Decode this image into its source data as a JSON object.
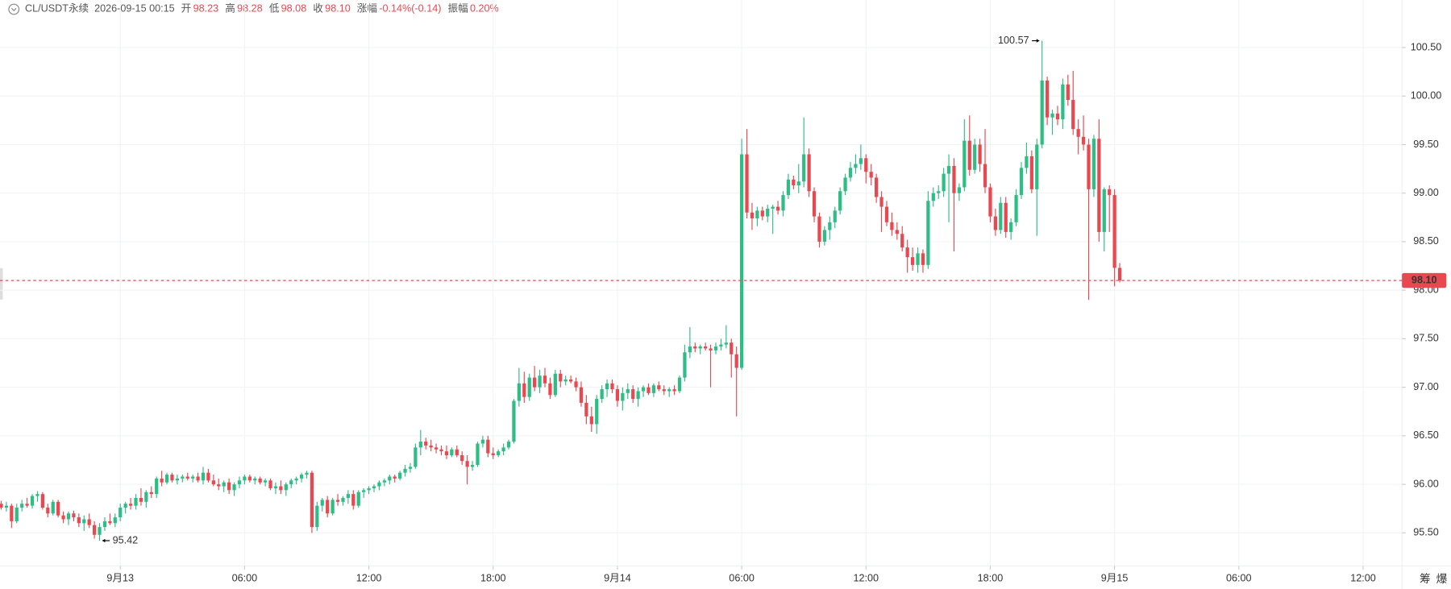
{
  "header": {
    "symbol": "CL/USDT永续",
    "time": "2026-09-15 00:15",
    "items": [
      {
        "label": "开",
        "value": "98.23"
      },
      {
        "label": "高",
        "value": "98.28"
      },
      {
        "label": "低",
        "value": "98.08"
      },
      {
        "label": "收",
        "value": "98.10"
      },
      {
        "label": "涨幅",
        "value": "-0.14%(-0.14)"
      },
      {
        "label": "振幅",
        "value": "0.20%"
      }
    ]
  },
  "toolbar": [
    "筹",
    "爆"
  ],
  "chart_data": {
    "type": "candlestick",
    "up_color": "#2ebd85",
    "down_color": "#e84850",
    "grid": true,
    "ylim": [
      95.16,
      100.78
    ],
    "yticks": [
      {
        "value": 95.5,
        "label": "95.50"
      },
      {
        "value": 96,
        "label": "96.00"
      },
      {
        "value": 96.5,
        "label": "96.50"
      },
      {
        "value": 97,
        "label": "97.00"
      },
      {
        "value": 97.5,
        "label": "97.50"
      },
      {
        "value": 98,
        "label": "98.00"
      },
      {
        "value": 98.5,
        "label": "98.50"
      },
      {
        "value": 99,
        "label": "99.00"
      },
      {
        "value": 99.5,
        "label": "99.50"
      },
      {
        "value": 100,
        "label": "100.00"
      },
      {
        "value": 100.5,
        "label": "100.50"
      }
    ],
    "xlim": [
      -0.23,
      270.5
    ],
    "xticks": [
      {
        "value": 23,
        "label": "9月13"
      },
      {
        "value": 47,
        "label": "06:00"
      },
      {
        "value": 71,
        "label": "12:00"
      },
      {
        "value": 95,
        "label": "18:00"
      },
      {
        "value": 119,
        "label": "9月14"
      },
      {
        "value": 143,
        "label": "06:00"
      },
      {
        "value": 167,
        "label": "12:00"
      },
      {
        "value": 191,
        "label": "18:00"
      },
      {
        "value": 215,
        "label": "9月15"
      },
      {
        "value": 239,
        "label": "06:00"
      },
      {
        "value": 263,
        "label": "12:00"
      }
    ],
    "last_price": {
      "value": 98.1,
      "label": "98.10"
    },
    "ohlc": [
      [
        95.8,
        95.83,
        95.74,
        95.76
      ],
      [
        95.76,
        95.82,
        95.72,
        95.78
      ],
      [
        95.78,
        95.8,
        95.55,
        95.62
      ],
      [
        95.62,
        95.8,
        95.6,
        95.76
      ],
      [
        95.76,
        95.84,
        95.72,
        95.8
      ],
      [
        95.8,
        95.86,
        95.76,
        95.78
      ],
      [
        95.78,
        95.9,
        95.75,
        95.88
      ],
      [
        95.88,
        95.93,
        95.82,
        95.9
      ],
      [
        95.9,
        95.92,
        95.74,
        95.76
      ],
      [
        95.76,
        95.8,
        95.66,
        95.7
      ],
      [
        95.7,
        95.84,
        95.68,
        95.82
      ],
      [
        95.82,
        95.84,
        95.66,
        95.68
      ],
      [
        95.68,
        95.72,
        95.6,
        95.64
      ],
      [
        95.64,
        95.72,
        95.58,
        95.7
      ],
      [
        95.7,
        95.73,
        95.62,
        95.66
      ],
      [
        95.66,
        95.7,
        95.56,
        95.6
      ],
      [
        95.6,
        95.68,
        95.52,
        95.64
      ],
      [
        95.64,
        95.7,
        95.55,
        95.58
      ],
      [
        95.58,
        95.62,
        95.44,
        95.48
      ],
      [
        95.48,
        95.6,
        95.42,
        95.56
      ],
      [
        95.56,
        95.66,
        95.52,
        95.62
      ],
      [
        95.62,
        95.7,
        95.58,
        95.6
      ],
      [
        95.6,
        95.7,
        95.56,
        95.66
      ],
      [
        95.66,
        95.8,
        95.62,
        95.76
      ],
      [
        95.76,
        95.82,
        95.7,
        95.8
      ],
      [
        95.8,
        95.86,
        95.74,
        95.78
      ],
      [
        95.78,
        95.9,
        95.74,
        95.86
      ],
      [
        95.86,
        95.96,
        95.78,
        95.82
      ],
      [
        95.82,
        95.94,
        95.76,
        95.92
      ],
      [
        95.92,
        95.98,
        95.86,
        95.9
      ],
      [
        95.9,
        96.08,
        95.86,
        96.06
      ],
      [
        96.06,
        96.14,
        95.98,
        96.02
      ],
      [
        96.02,
        96.12,
        96.0,
        96.1
      ],
      [
        96.1,
        96.12,
        96.02,
        96.04
      ],
      [
        96.04,
        96.1,
        96.0,
        96.06
      ],
      [
        96.06,
        96.1,
        96.02,
        96.08
      ],
      [
        96.08,
        96.12,
        96.04,
        96.06
      ],
      [
        96.06,
        96.1,
        96.02,
        96.08
      ],
      [
        96.08,
        96.12,
        96.02,
        96.04
      ],
      [
        96.04,
        96.18,
        96.0,
        96.12
      ],
      [
        96.12,
        96.16,
        96.02,
        96.04
      ],
      [
        96.04,
        96.1,
        95.98,
        96.0
      ],
      [
        96.0,
        96.06,
        95.94,
        95.98
      ],
      [
        95.98,
        96.04,
        95.92,
        96.02
      ],
      [
        96.02,
        96.06,
        95.9,
        95.94
      ],
      [
        95.94,
        96.02,
        95.88,
        96.0
      ],
      [
        96.0,
        96.08,
        95.96,
        96.04
      ],
      [
        96.04,
        96.1,
        96.0,
        96.08
      ],
      [
        96.08,
        96.1,
        96.02,
        96.04
      ],
      [
        96.04,
        96.08,
        96.0,
        96.06
      ],
      [
        96.06,
        96.08,
        96.0,
        96.02
      ],
      [
        96.02,
        96.06,
        95.98,
        96.04
      ],
      [
        96.04,
        96.06,
        95.94,
        95.96
      ],
      [
        95.96,
        96.02,
        95.9,
        95.98
      ],
      [
        95.98,
        96.04,
        95.9,
        95.94
      ],
      [
        95.94,
        96.02,
        95.88,
        96.0
      ],
      [
        96.0,
        96.06,
        95.96,
        96.04
      ],
      [
        96.04,
        96.08,
        96.0,
        96.06
      ],
      [
        96.06,
        96.12,
        96.02,
        96.1
      ],
      [
        96.1,
        96.14,
        96.06,
        96.12
      ],
      [
        96.12,
        96.14,
        95.5,
        95.56
      ],
      [
        95.56,
        95.82,
        95.52,
        95.78
      ],
      [
        95.78,
        95.86,
        95.72,
        95.84
      ],
      [
        95.84,
        95.88,
        95.66,
        95.7
      ],
      [
        95.7,
        95.86,
        95.68,
        95.84
      ],
      [
        95.84,
        95.9,
        95.78,
        95.82
      ],
      [
        95.82,
        95.88,
        95.78,
        95.86
      ],
      [
        95.86,
        95.94,
        95.8,
        95.9
      ],
      [
        95.9,
        95.94,
        95.74,
        95.78
      ],
      [
        95.78,
        95.94,
        95.76,
        95.92
      ],
      [
        95.92,
        95.96,
        95.86,
        95.94
      ],
      [
        95.94,
        95.98,
        95.9,
        95.96
      ],
      [
        95.96,
        96.0,
        95.92,
        95.98
      ],
      [
        95.98,
        96.04,
        95.94,
        96.02
      ],
      [
        96.02,
        96.06,
        95.98,
        96.04
      ],
      [
        96.04,
        96.1,
        96.0,
        96.08
      ],
      [
        96.08,
        96.1,
        96.02,
        96.06
      ],
      [
        96.06,
        96.14,
        96.04,
        96.12
      ],
      [
        96.12,
        96.2,
        96.08,
        96.16
      ],
      [
        96.16,
        96.22,
        96.12,
        96.18
      ],
      [
        96.18,
        96.42,
        96.16,
        96.38
      ],
      [
        96.38,
        96.56,
        96.3,
        96.44
      ],
      [
        96.44,
        96.48,
        96.36,
        96.4
      ],
      [
        96.4,
        96.46,
        96.34,
        96.38
      ],
      [
        96.38,
        96.42,
        96.32,
        96.36
      ],
      [
        96.36,
        96.4,
        96.3,
        96.34
      ],
      [
        96.34,
        96.4,
        96.26,
        96.3
      ],
      [
        96.3,
        96.38,
        96.28,
        96.36
      ],
      [
        96.36,
        96.4,
        96.28,
        96.3
      ],
      [
        96.3,
        96.34,
        96.2,
        96.24
      ],
      [
        96.24,
        96.3,
        96.0,
        96.18
      ],
      [
        96.18,
        96.24,
        96.14,
        96.2
      ],
      [
        96.2,
        96.44,
        96.18,
        96.42
      ],
      [
        96.42,
        96.5,
        96.38,
        96.46
      ],
      [
        96.46,
        96.5,
        96.28,
        96.32
      ],
      [
        96.32,
        96.38,
        96.26,
        96.3
      ],
      [
        96.3,
        96.36,
        96.28,
        96.34
      ],
      [
        96.34,
        96.42,
        96.3,
        96.38
      ],
      [
        96.38,
        96.46,
        96.36,
        96.44
      ],
      [
        96.44,
        96.88,
        96.42,
        96.86
      ],
      [
        96.86,
        97.2,
        96.8,
        97.04
      ],
      [
        97.04,
        97.16,
        96.84,
        96.9
      ],
      [
        96.9,
        97.14,
        96.86,
        97.1
      ],
      [
        97.1,
        97.22,
        96.96,
        97.0
      ],
      [
        97.0,
        97.18,
        96.94,
        97.12
      ],
      [
        97.12,
        97.2,
        97.0,
        97.04
      ],
      [
        97.04,
        97.1,
        96.88,
        96.92
      ],
      [
        96.92,
        97.18,
        96.9,
        97.14
      ],
      [
        97.14,
        97.18,
        97.0,
        97.06
      ],
      [
        97.06,
        97.12,
        97.02,
        97.08
      ],
      [
        97.08,
        97.12,
        97.04,
        97.06
      ],
      [
        97.06,
        97.1,
        96.96,
        97.0
      ],
      [
        97.0,
        97.06,
        96.8,
        96.84
      ],
      [
        96.84,
        96.92,
        96.62,
        96.7
      ],
      [
        96.7,
        96.8,
        96.54,
        96.62
      ],
      [
        96.62,
        96.92,
        96.52,
        96.88
      ],
      [
        96.88,
        97.02,
        96.84,
        96.98
      ],
      [
        96.98,
        97.08,
        96.9,
        97.04
      ],
      [
        97.04,
        97.08,
        96.94,
        96.98
      ],
      [
        96.98,
        97.02,
        96.8,
        96.86
      ],
      [
        96.86,
        97.0,
        96.76,
        96.94
      ],
      [
        96.94,
        97.04,
        96.88,
        96.98
      ],
      [
        96.98,
        97.02,
        96.84,
        96.88
      ],
      [
        96.88,
        97.0,
        96.8,
        96.96
      ],
      [
        96.96,
        97.02,
        96.9,
        97.0
      ],
      [
        97.0,
        97.04,
        96.92,
        96.94
      ],
      [
        96.94,
        97.04,
        96.9,
        97.02
      ],
      [
        97.02,
        97.06,
        96.96,
        96.98
      ],
      [
        96.98,
        97.02,
        96.92,
        96.96
      ],
      [
        96.96,
        97.0,
        96.9,
        96.98
      ],
      [
        96.98,
        97.02,
        96.92,
        96.96
      ],
      [
        96.96,
        97.12,
        96.94,
        97.1
      ],
      [
        97.1,
        97.44,
        97.06,
        97.36
      ],
      [
        97.36,
        97.62,
        97.3,
        97.42
      ],
      [
        97.42,
        97.46,
        97.36,
        97.4
      ],
      [
        97.4,
        97.44,
        97.34,
        97.42
      ],
      [
        97.42,
        97.46,
        97.38,
        97.4
      ],
      [
        97.4,
        97.44,
        97.0,
        97.38
      ],
      [
        97.38,
        97.46,
        97.34,
        97.42
      ],
      [
        97.42,
        97.5,
        97.38,
        97.44
      ],
      [
        97.44,
        97.64,
        97.4,
        97.46
      ],
      [
        97.46,
        97.5,
        97.1,
        97.34
      ],
      [
        97.34,
        97.42,
        96.7,
        97.2
      ],
      [
        97.2,
        99.56,
        97.18,
        99.4
      ],
      [
        99.4,
        99.66,
        98.74,
        98.8
      ],
      [
        98.8,
        98.9,
        98.62,
        98.74
      ],
      [
        98.74,
        98.86,
        98.66,
        98.82
      ],
      [
        98.82,
        98.86,
        98.72,
        98.76
      ],
      [
        98.76,
        98.88,
        98.7,
        98.84
      ],
      [
        98.84,
        98.88,
        98.58,
        98.86
      ],
      [
        98.86,
        98.92,
        98.78,
        98.82
      ],
      [
        98.82,
        99.02,
        98.76,
        98.98
      ],
      [
        98.98,
        99.2,
        98.94,
        99.14
      ],
      [
        99.14,
        99.18,
        99.04,
        99.08
      ],
      [
        99.08,
        99.3,
        99.0,
        99.12
      ],
      [
        99.12,
        99.78,
        99.06,
        99.4
      ],
      [
        99.4,
        99.46,
        98.96,
        99.02
      ],
      [
        99.02,
        99.06,
        98.7,
        98.76
      ],
      [
        98.76,
        98.8,
        98.44,
        98.5
      ],
      [
        98.5,
        98.66,
        98.46,
        98.62
      ],
      [
        98.62,
        98.76,
        98.52,
        98.7
      ],
      [
        98.7,
        98.86,
        98.64,
        98.82
      ],
      [
        98.82,
        99.06,
        98.78,
        99.02
      ],
      [
        99.02,
        99.2,
        98.98,
        99.16
      ],
      [
        99.16,
        99.32,
        99.12,
        99.26
      ],
      [
        99.26,
        99.4,
        99.2,
        99.3
      ],
      [
        99.3,
        99.5,
        99.24,
        99.36
      ],
      [
        99.36,
        99.4,
        99.1,
        99.22
      ],
      [
        99.22,
        99.3,
        99.08,
        99.16
      ],
      [
        99.16,
        99.2,
        98.9,
        98.96
      ],
      [
        98.96,
        99.02,
        98.6,
        98.86
      ],
      [
        98.86,
        98.92,
        98.66,
        98.7
      ],
      [
        98.7,
        98.8,
        98.56,
        98.62
      ],
      [
        98.62,
        98.7,
        98.52,
        98.58
      ],
      [
        98.58,
        98.66,
        98.4,
        98.44
      ],
      [
        98.44,
        98.52,
        98.18,
        98.34
      ],
      [
        98.34,
        98.44,
        98.2,
        98.26
      ],
      [
        98.26,
        98.44,
        98.18,
        98.38
      ],
      [
        98.38,
        98.42,
        98.18,
        98.26
      ],
      [
        98.26,
        99.02,
        98.22,
        98.92
      ],
      [
        98.92,
        99.06,
        98.86,
        99.0
      ],
      [
        99.0,
        99.08,
        98.94,
        99.02
      ],
      [
        99.02,
        99.26,
        98.96,
        99.2
      ],
      [
        99.2,
        99.4,
        98.7,
        99.28
      ],
      [
        99.28,
        99.36,
        98.4,
        99.0
      ],
      [
        99.0,
        99.1,
        98.92,
        99.06
      ],
      [
        99.06,
        99.76,
        99.02,
        99.54
      ],
      [
        99.54,
        99.8,
        99.18,
        99.24
      ],
      [
        99.24,
        99.56,
        99.2,
        99.5
      ],
      [
        99.5,
        99.56,
        99.22,
        99.3
      ],
      [
        99.3,
        99.66,
        99.0,
        99.06
      ],
      [
        99.06,
        99.1,
        98.7,
        98.76
      ],
      [
        98.76,
        98.84,
        98.56,
        98.62
      ],
      [
        98.62,
        98.96,
        98.58,
        98.9
      ],
      [
        98.9,
        98.96,
        98.54,
        98.6
      ],
      [
        98.6,
        98.74,
        98.52,
        98.7
      ],
      [
        98.7,
        99.04,
        98.66,
        98.98
      ],
      [
        98.98,
        99.32,
        98.94,
        99.26
      ],
      [
        99.26,
        99.52,
        99.2,
        99.38
      ],
      [
        99.38,
        99.44,
        99.0,
        99.04
      ],
      [
        99.04,
        99.56,
        98.56,
        99.5
      ],
      [
        99.5,
        100.57,
        99.46,
        100.16
      ],
      [
        100.16,
        100.2,
        99.7,
        99.78
      ],
      [
        99.78,
        99.86,
        99.6,
        99.82
      ],
      [
        99.82,
        99.9,
        99.7,
        99.76
      ],
      [
        99.76,
        100.18,
        99.66,
        100.12
      ],
      [
        100.12,
        100.22,
        99.9,
        99.96
      ],
      [
        99.96,
        100.26,
        99.6,
        99.66
      ],
      [
        99.66,
        99.76,
        99.4,
        99.58
      ],
      [
        99.58,
        99.8,
        99.44,
        99.5
      ],
      [
        99.5,
        99.56,
        97.9,
        99.04
      ],
      [
        99.04,
        99.6,
        98.96,
        99.56
      ],
      [
        99.56,
        99.76,
        98.5,
        98.6
      ],
      [
        98.6,
        99.06,
        98.4,
        99.04
      ],
      [
        99.04,
        99.08,
        98.6,
        98.98
      ],
      [
        98.98,
        99.04,
        98.04,
        98.23
      ],
      [
        98.23,
        98.28,
        98.08,
        98.1
      ]
    ]
  }
}
